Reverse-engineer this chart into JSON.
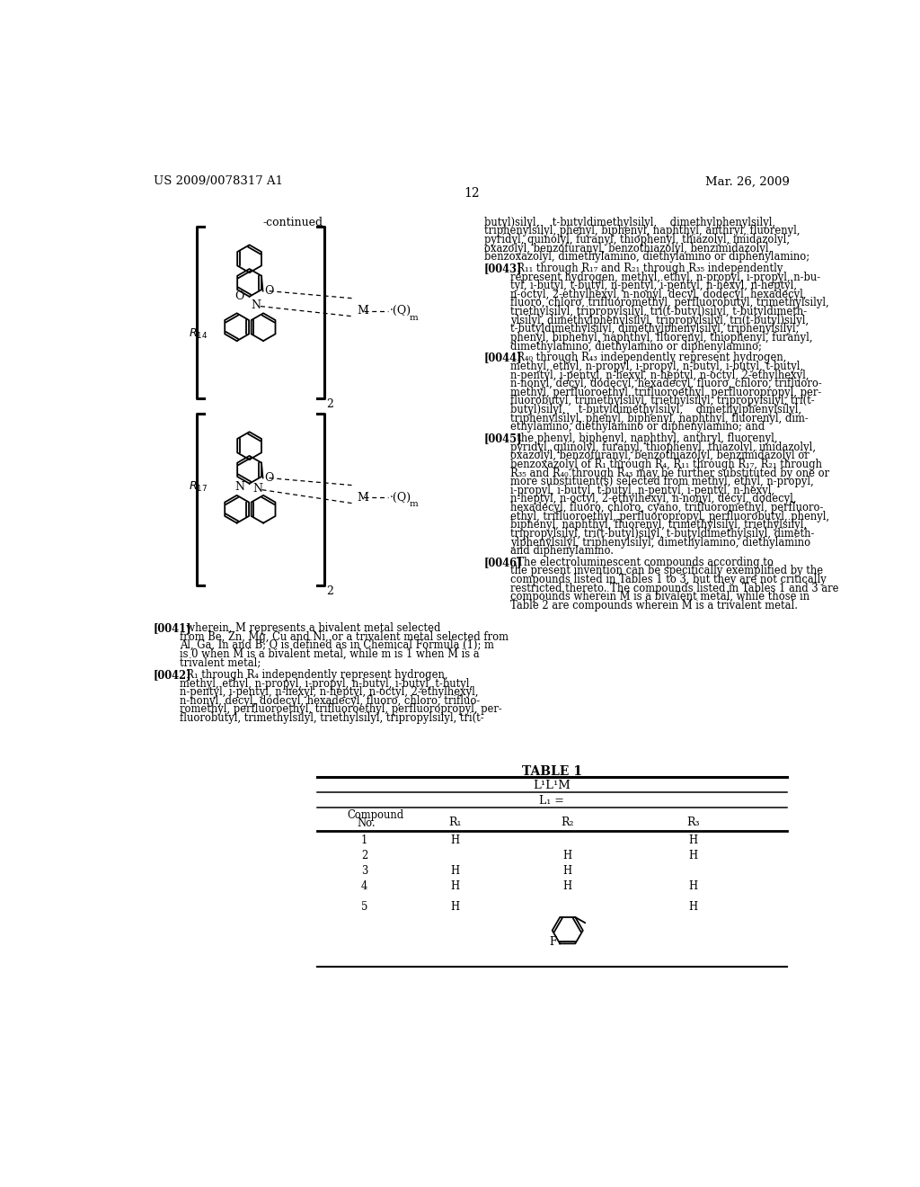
{
  "header_left": "US 2009/0078317 A1",
  "header_right": "Mar. 26, 2009",
  "page_number": "12",
  "background": "#ffffff"
}
